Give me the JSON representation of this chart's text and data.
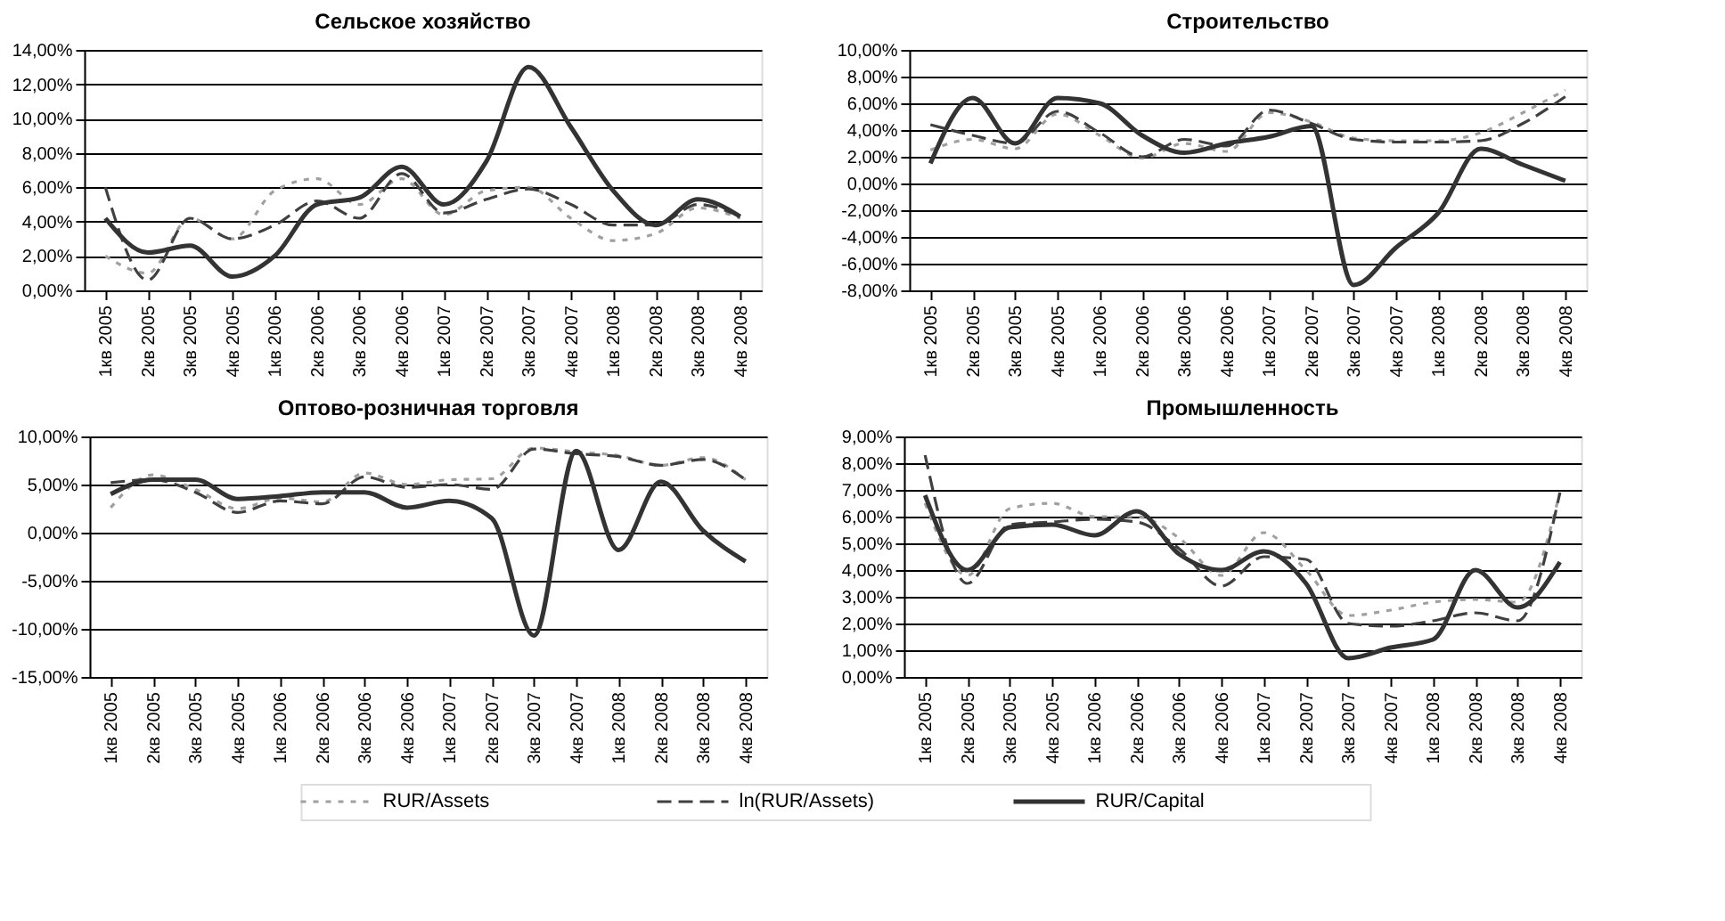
{
  "chart_data": [
    {
      "type": "line",
      "title": "Сельское хозяйство",
      "categories": [
        "1кв 2005",
        "2кв 2005",
        "3кв 2005",
        "4кв 2005",
        "1кв 2006",
        "2кв 2006",
        "3кв 2006",
        "4кв 2006",
        "1кв 2007",
        "2кв 2007",
        "3кв 2007",
        "4кв 2007",
        "1кв 2008",
        "2кв 2008",
        "3кв 2008",
        "4кв 2008"
      ],
      "series": [
        {
          "name": "RUR/Assets",
          "color": "#a0a0a0",
          "line_style": "dotted",
          "values": [
            2.0,
            1.0,
            4.2,
            3.0,
            5.8,
            6.5,
            5.0,
            6.5,
            4.4,
            5.8,
            6.0,
            4.2,
            2.9,
            3.3,
            4.8,
            4.2
          ]
        },
        {
          "name": "ln(RUR/Assets)",
          "color": "#404040",
          "line_style": "dashed",
          "values": [
            6.0,
            0.6,
            4.2,
            3.0,
            3.8,
            5.2,
            4.2,
            6.8,
            4.5,
            5.3,
            5.9,
            5.0,
            3.8,
            3.8,
            5.0,
            4.3
          ]
        },
        {
          "name": "RUR/Capital",
          "color": "#333333",
          "line_style": "solid",
          "values": [
            4.2,
            2.2,
            2.6,
            0.8,
            2.0,
            5.0,
            5.4,
            7.2,
            5.0,
            7.5,
            13.0,
            9.5,
            5.8,
            3.8,
            5.3,
            4.3
          ]
        }
      ],
      "ylim": [
        0,
        14
      ],
      "yticks": [
        {
          "value": 0,
          "label": "0,00%"
        },
        {
          "value": 2,
          "label": "2,00%"
        },
        {
          "value": 4,
          "label": "4,00%"
        },
        {
          "value": 6,
          "label": "6,00%"
        },
        {
          "value": 8,
          "label": "8,00%"
        },
        {
          "value": 10,
          "label": "10,00%"
        },
        {
          "value": 12,
          "label": "12,00%"
        },
        {
          "value": 14,
          "label": "14,00%"
        }
      ],
      "grid": "y",
      "legend": "bottom"
    },
    {
      "type": "line",
      "title": "Строительство",
      "categories": [
        "1кв 2005",
        "2кв 2005",
        "3кв 2005",
        "4кв 2005",
        "1кв 2006",
        "2кв 2006",
        "3кв 2006",
        "4кв 2006",
        "1кв 2007",
        "2кв 2007",
        "3кв 2007",
        "4кв 2007",
        "1кв 2008",
        "2кв 2008",
        "3кв 2008",
        "4кв 2008"
      ],
      "series": [
        {
          "name": "RUR/Assets",
          "color": "#a0a0a0",
          "line_style": "dotted",
          "values": [
            2.5,
            3.3,
            2.6,
            5.2,
            3.6,
            1.9,
            3.0,
            2.4,
            5.3,
            4.6,
            3.4,
            3.2,
            3.2,
            3.8,
            5.3,
            7.0
          ]
        },
        {
          "name": "ln(RUR/Assets)",
          "color": "#404040",
          "line_style": "dashed",
          "values": [
            4.4,
            3.6,
            3.0,
            5.4,
            3.8,
            2.0,
            3.3,
            2.8,
            5.5,
            4.5,
            3.3,
            3.1,
            3.1,
            3.2,
            4.5,
            6.5
          ]
        },
        {
          "name": "RUR/Capital",
          "color": "#333333",
          "line_style": "solid",
          "values": [
            1.5,
            6.4,
            3.0,
            6.4,
            6.0,
            3.6,
            2.3,
            3.0,
            3.5,
            4.3,
            -7.6,
            -4.8,
            -2.2,
            2.6,
            1.4,
            0.2
          ]
        }
      ],
      "ylim": [
        -8,
        10
      ],
      "yticks": [
        {
          "value": -8,
          "label": "-8,00%"
        },
        {
          "value": -6,
          "label": "-6,00%"
        },
        {
          "value": -4,
          "label": "-4,00%"
        },
        {
          "value": -2,
          "label": "-2,00%"
        },
        {
          "value": 0,
          "label": "0,00%"
        },
        {
          "value": 2,
          "label": "2,00%"
        },
        {
          "value": 4,
          "label": "4,00%"
        },
        {
          "value": 6,
          "label": "6,00%"
        },
        {
          "value": 8,
          "label": "8,00%"
        },
        {
          "value": 10,
          "label": "10,00%"
        }
      ],
      "grid": "y",
      "legend": "bottom"
    },
    {
      "type": "line",
      "title": "Оптово-розничная торговля",
      "categories": [
        "1кв 2005",
        "2кв 2005",
        "3кв 2005",
        "4кв 2005",
        "1кв 2006",
        "2кв 2006",
        "3кв 2006",
        "4кв 2006",
        "1кв 2007",
        "2кв 2007",
        "3кв 2007",
        "4кв 2007",
        "1кв 2008",
        "2кв 2008",
        "3кв 2008",
        "4кв 2008"
      ],
      "series": [
        {
          "name": "RUR/Assets",
          "color": "#a0a0a0",
          "line_style": "dotted",
          "values": [
            2.6,
            6.0,
            4.5,
            2.5,
            3.6,
            3.2,
            6.2,
            5.0,
            5.5,
            5.6,
            8.8,
            8.4,
            8.0,
            7.0,
            7.8,
            5.5
          ]
        },
        {
          "name": "ln(RUR/Assets)",
          "color": "#404040",
          "line_style": "dashed",
          "values": [
            5.2,
            5.5,
            4.2,
            2.1,
            3.3,
            3.0,
            5.8,
            4.7,
            5.0,
            4.5,
            8.7,
            8.2,
            7.9,
            7.0,
            7.6,
            5.5
          ]
        },
        {
          "name": "RUR/Capital",
          "color": "#333333",
          "line_style": "solid",
          "values": [
            4.0,
            5.5,
            5.5,
            3.5,
            3.8,
            4.2,
            4.2,
            2.6,
            3.3,
            1.5,
            -10.7,
            8.5,
            -1.8,
            5.3,
            0.2,
            -3.0
          ]
        }
      ],
      "ylim": [
        -15,
        10
      ],
      "yticks": [
        {
          "value": -15,
          "label": "-15,00%"
        },
        {
          "value": -10,
          "label": "-10,00%"
        },
        {
          "value": -5,
          "label": "-5,00%"
        },
        {
          "value": 0,
          "label": "0,00%"
        },
        {
          "value": 5,
          "label": "5,00%"
        },
        {
          "value": 10,
          "label": "10,00%"
        }
      ],
      "grid": "y",
      "legend": "bottom"
    },
    {
      "type": "line",
      "title": "Промышленность",
      "categories": [
        "1кв 2005",
        "2кв 2005",
        "3кв 2005",
        "4кв 2005",
        "1кв 2006",
        "2кв 2006",
        "3кв 2006",
        "4кв 2006",
        "1кв 2007",
        "2кв 2007",
        "3кв 2007",
        "4кв 2007",
        "1кв 2008",
        "2кв 2008",
        "3кв 2008",
        "4кв 2008"
      ],
      "series": [
        {
          "name": "RUR/Assets",
          "color": "#a0a0a0",
          "line_style": "dotted",
          "values": [
            6.5,
            3.8,
            6.3,
            6.5,
            6.0,
            6.0,
            5.2,
            3.8,
            5.4,
            4.0,
            2.3,
            2.5,
            2.8,
            2.9,
            2.8,
            6.9
          ]
        },
        {
          "name": "ln(RUR/Assets)",
          "color": "#404040",
          "line_style": "dashed",
          "values": [
            8.3,
            3.5,
            5.7,
            5.8,
            5.9,
            5.8,
            4.8,
            3.4,
            4.5,
            4.4,
            2.0,
            1.9,
            2.1,
            2.4,
            2.1,
            6.9
          ]
        },
        {
          "name": "RUR/Capital",
          "color": "#333333",
          "line_style": "solid",
          "values": [
            6.8,
            4.0,
            5.6,
            5.7,
            5.3,
            6.2,
            4.6,
            4.0,
            4.7,
            3.5,
            0.7,
            1.1,
            1.4,
            4.0,
            2.6,
            4.3
          ]
        }
      ],
      "ylim": [
        0,
        9
      ],
      "yticks": [
        {
          "value": 0,
          "label": "0,00%"
        },
        {
          "value": 1,
          "label": "1,00%"
        },
        {
          "value": 2,
          "label": "2,00%"
        },
        {
          "value": 3,
          "label": "3,00%"
        },
        {
          "value": 4,
          "label": "4,00%"
        },
        {
          "value": 5,
          "label": "5,00%"
        },
        {
          "value": 6,
          "label": "6,00%"
        },
        {
          "value": 7,
          "label": "7,00%"
        },
        {
          "value": 8,
          "label": "8,00%"
        },
        {
          "value": 9,
          "label": "9,00%"
        }
      ],
      "grid": "y",
      "legend": "bottom"
    }
  ]
}
